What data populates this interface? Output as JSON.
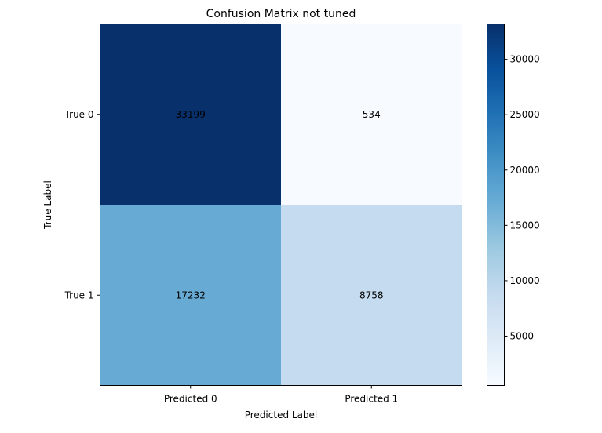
{
  "chart_data": {
    "type": "heatmap",
    "title": "Confusion Matrix not tuned",
    "xlabel": "Predicted Label",
    "ylabel": "True Label",
    "x_categories": [
      "Predicted 0",
      "Predicted 1"
    ],
    "y_categories": [
      "True 0",
      "True 1"
    ],
    "values": [
      [
        33199,
        534
      ],
      [
        17232,
        8758
      ]
    ],
    "colormap": "Blues",
    "colorbar": {
      "min": 534,
      "max": 33199,
      "ticks": [
        5000,
        10000,
        15000,
        20000,
        25000,
        30000
      ]
    },
    "grid": false
  }
}
